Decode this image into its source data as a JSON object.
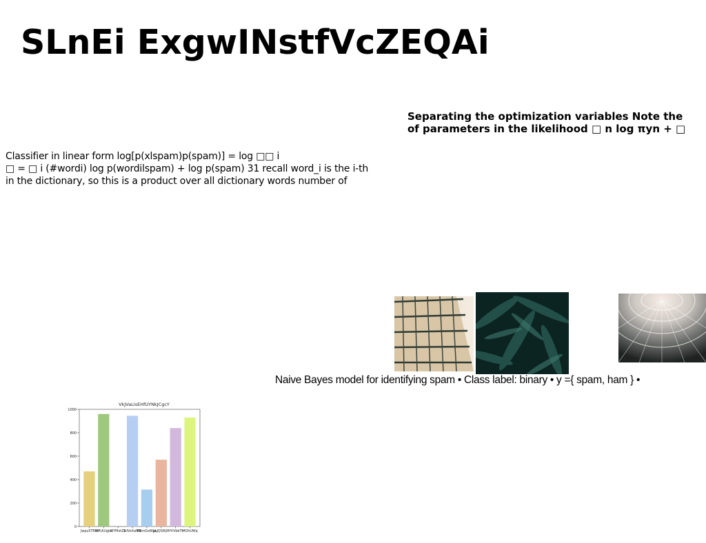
{
  "title": "SLnEi ExgwINstfVcZEQAi",
  "block_right": "Separating the optimization variables Note the\nof parameters in the likelihood □ n log πyn + □",
  "block_left": "Classifier in linear form log[p(xlspam)p(spam)] = log □□ i\n□ = □ i (#wordi) log p(wordilspam) + log p(spam) 31 recall word_i is the i-th\nin the dictionary, so this is a product over all dictionary words number of",
  "caption": "Naive Bayes model for identifying spam • Class label: binary • y ={ spam, ham } •",
  "photos": [
    {
      "name": "building-facade-photo"
    },
    {
      "name": "fern-leaves-photo"
    },
    {
      "name": "lattice-dome-photo"
    }
  ],
  "chart_data": {
    "type": "bar",
    "title": "VkJVaLIsEHfUYNkJCgcY",
    "categories": [
      "JwpuSTRM",
      "NMUUlgbo",
      "lEYMotZb",
      "IUVoXaNN",
      "KNmGoWqL",
      "JwJQSWjH",
      "rfVVbbTt",
      "MOhUWq"
    ],
    "values": [
      470,
      960,
      0,
      945,
      315,
      570,
      840,
      930
    ],
    "colors": [
      "#e5d07d",
      "#9fc87f",
      "#ffffff",
      "#b7cef3",
      "#a7cdef",
      "#e9b59f",
      "#d2b8dc",
      "#ddf57e"
    ],
    "ylim": [
      0,
      1000
    ],
    "yticks": [
      0,
      200,
      400,
      600,
      800,
      1000
    ],
    "xlabel": "",
    "ylabel": "",
    "grid": false
  }
}
